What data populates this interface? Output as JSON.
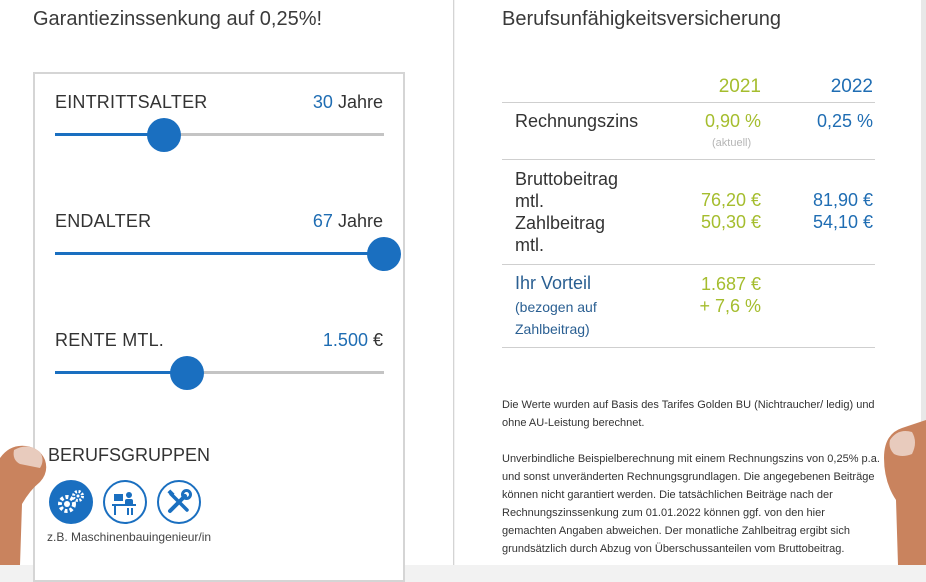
{
  "left": {
    "heading": "Garantiezinssenkung auf 0,25%!",
    "sliders": [
      {
        "label": "EINTRITTSALTER",
        "value": "30",
        "unit": "Jahre",
        "fraction": 0.33
      },
      {
        "label": "ENDALTER",
        "value": "67",
        "unit": "Jahre",
        "fraction": 1.0
      },
      {
        "label": "RENTE MTL.",
        "value": "1.500",
        "unit": "€",
        "fraction": 0.4
      }
    ],
    "groups": {
      "label": "BERUFSGRUPPEN",
      "caption": "z.B. Maschinenbauingenieur/in"
    }
  },
  "right": {
    "heading": "Berufsunfähigkeitsversicherung",
    "years": [
      "2021",
      "2022"
    ],
    "rechnungszins": {
      "label": "Rechnungszins",
      "v2021": "0,90 %",
      "v2022": "0,25 %",
      "note": "(aktuell)"
    },
    "brutto": {
      "label_line1": "Bruttobeitrag",
      "label_line2": "mtl.",
      "v2021": "76,20 €",
      "v2022": "81,90 €"
    },
    "zahl": {
      "label_line1": "Zahlbeitrag",
      "label_line2": "mtl.",
      "v2021": "50,30 €",
      "v2022": "54,10 €"
    },
    "vorteil": {
      "label": "Ihr Vorteil",
      "sub": "(bezogen auf Zahlbeitrag)",
      "amount": "1.687 €",
      "percent": "+ 7,6 %"
    },
    "disclaimer1": "Die Werte wurden auf Basis des Tarifes Golden BU (Nichtraucher/ ledig) und ohne AU-Leistung berechnet.",
    "disclaimer2": "Unverbindliche Beispielberechnung mit einem Rechnungszins von 0,25% p.a. und sonst unveränderten Rechnungsgrundlagen. Die angegebenen Beiträge können nicht garantiert werden. Die tatsächlichen Beiträge nach der Rechnungszinssenkung zum 01.01.2022 können ggf. von den hier gemachten Angaben abweichen. Der monatliche Zahlbeitrag ergibt sich grundsätzlich durch Abzug von Überschussanteilen vom Bruttobeitrag."
  },
  "colors": {
    "accent": "#1a6fc0",
    "year2021": "#a5bd2e",
    "year2022": "#1f6db3"
  },
  "icons": [
    "gears-icon",
    "desk-worker-icon",
    "tools-icon"
  ]
}
